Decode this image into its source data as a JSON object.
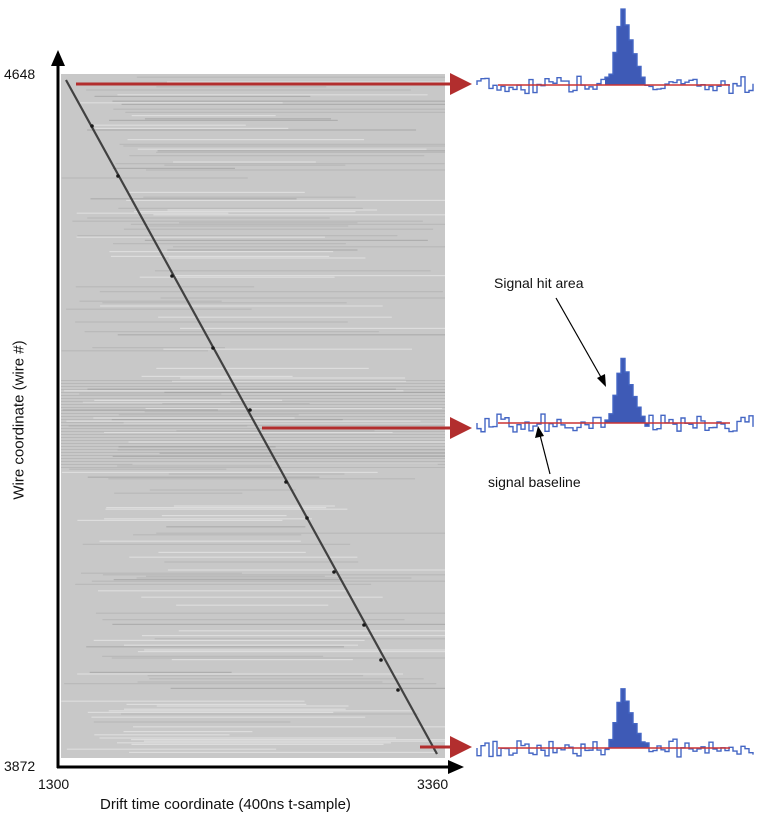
{
  "axes": {
    "y_title": "Wire coordinate (wire #)",
    "y_top_label": "4648",
    "y_bottom_label": "3872",
    "x_title": "Drift time coordinate (400ns t-sample)",
    "x_left_label": "1300",
    "x_right_label": "3360"
  },
  "annotations": {
    "signal_hit": "Signal hit area",
    "baseline": "signal baseline"
  },
  "colors": {
    "arrow": "#b22e2e",
    "waveform_line": "#4466c4",
    "waveform_fill": "#3e5ab6",
    "baseline": "#cc3333",
    "image_bg": "#c8c8c8",
    "track": "#2a2a2a"
  },
  "waveforms": [
    {
      "id": "top",
      "peak": 1.0
    },
    {
      "id": "middle",
      "peak": 0.85
    },
    {
      "id": "bottom",
      "peak": 0.78
    }
  ]
}
